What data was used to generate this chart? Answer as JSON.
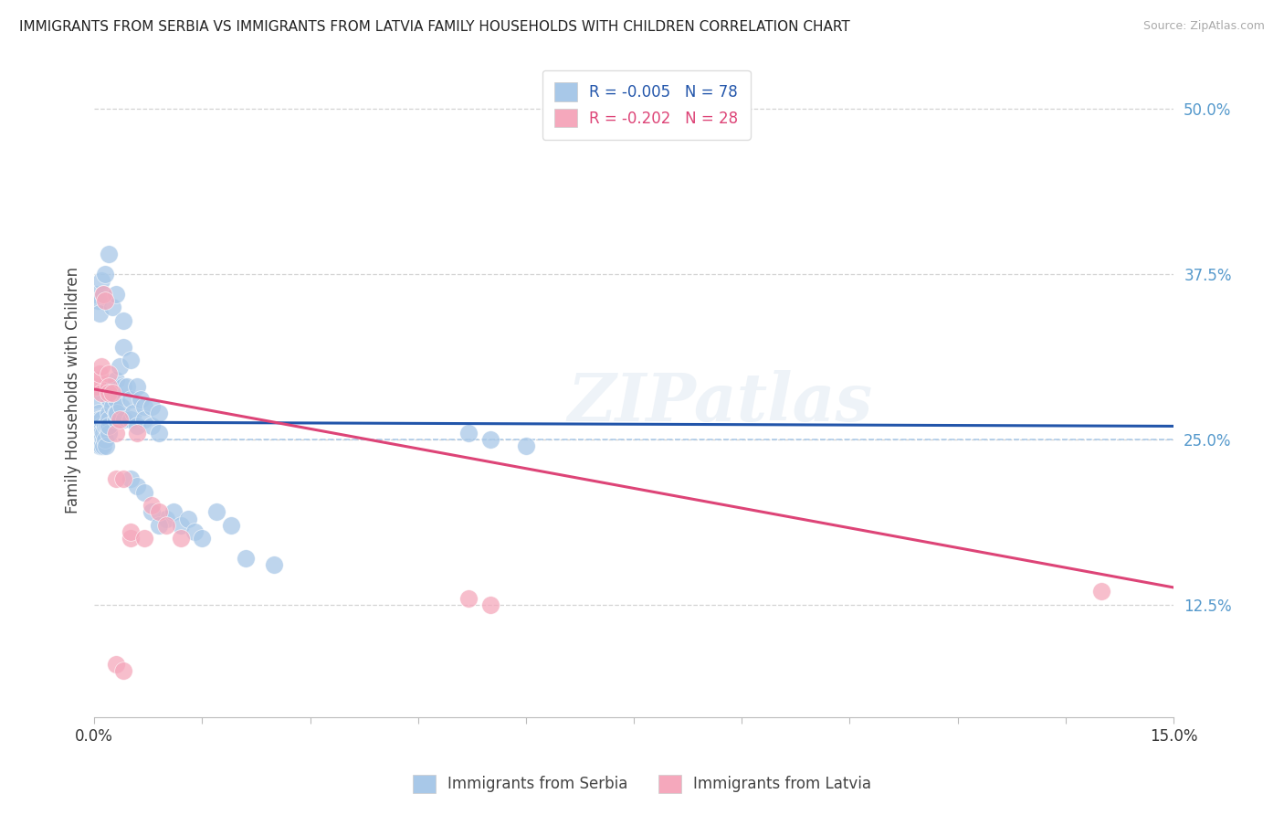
{
  "title": "IMMIGRANTS FROM SERBIA VS IMMIGRANTS FROM LATVIA FAMILY HOUSEHOLDS WITH CHILDREN CORRELATION CHART",
  "source": "Source: ZipAtlas.com",
  "ylabel": "Family Households with Children",
  "ytick_labels": [
    "12.5%",
    "25.0%",
    "37.5%",
    "50.0%"
  ],
  "ytick_values": [
    0.125,
    0.25,
    0.375,
    0.5
  ],
  "xmin": 0.0,
  "xmax": 0.15,
  "ymin": 0.04,
  "ymax": 0.535,
  "serbia_color": "#a8c8e8",
  "latvia_color": "#f5a8bc",
  "serbia_R": "-0.005",
  "serbia_N": "78",
  "latvia_R": "-0.202",
  "latvia_N": "28",
  "serbia_line_color": "#2255aa",
  "latvia_line_color": "#dd4477",
  "watermark": "ZIPatlas",
  "background_color": "#ffffff",
  "grid_color": "#cccccc",
  "serbia_points_x": [
    0.0003,
    0.0005,
    0.0006,
    0.0007,
    0.0008,
    0.001,
    0.001,
    0.001,
    0.001,
    0.001,
    0.0012,
    0.0012,
    0.0013,
    0.0015,
    0.0015,
    0.0016,
    0.0018,
    0.002,
    0.002,
    0.002,
    0.002,
    0.002,
    0.0022,
    0.0025,
    0.0025,
    0.0028,
    0.003,
    0.003,
    0.003,
    0.003,
    0.0032,
    0.0035,
    0.0038,
    0.004,
    0.004,
    0.0042,
    0.0045,
    0.005,
    0.005,
    0.005,
    0.0055,
    0.006,
    0.006,
    0.0065,
    0.007,
    0.007,
    0.008,
    0.008,
    0.009,
    0.009,
    0.01,
    0.011,
    0.012,
    0.013,
    0.014,
    0.015,
    0.017,
    0.019,
    0.021,
    0.025,
    0.0003,
    0.0005,
    0.0008,
    0.001,
    0.0013,
    0.0015,
    0.002,
    0.0025,
    0.003,
    0.004,
    0.005,
    0.006,
    0.007,
    0.008,
    0.009,
    0.052,
    0.055,
    0.06
  ],
  "serbia_points_y": [
    0.28,
    0.255,
    0.27,
    0.265,
    0.245,
    0.26,
    0.255,
    0.25,
    0.245,
    0.265,
    0.25,
    0.245,
    0.255,
    0.26,
    0.25,
    0.245,
    0.26,
    0.28,
    0.27,
    0.265,
    0.255,
    0.26,
    0.28,
    0.29,
    0.275,
    0.285,
    0.265,
    0.27,
    0.295,
    0.28,
    0.27,
    0.305,
    0.275,
    0.29,
    0.32,
    0.265,
    0.29,
    0.28,
    0.265,
    0.31,
    0.27,
    0.26,
    0.29,
    0.28,
    0.275,
    0.265,
    0.26,
    0.275,
    0.255,
    0.27,
    0.19,
    0.195,
    0.185,
    0.19,
    0.18,
    0.175,
    0.195,
    0.185,
    0.16,
    0.155,
    0.36,
    0.355,
    0.345,
    0.37,
    0.36,
    0.375,
    0.39,
    0.35,
    0.36,
    0.34,
    0.22,
    0.215,
    0.21,
    0.195,
    0.185,
    0.255,
    0.25,
    0.245
  ],
  "latvia_points_x": [
    0.0003,
    0.0005,
    0.0007,
    0.001,
    0.001,
    0.0012,
    0.0015,
    0.002,
    0.002,
    0.002,
    0.0025,
    0.003,
    0.003,
    0.0035,
    0.004,
    0.005,
    0.005,
    0.006,
    0.007,
    0.008,
    0.009,
    0.01,
    0.012,
    0.052,
    0.055,
    0.14,
    0.003,
    0.004
  ],
  "latvia_points_y": [
    0.29,
    0.295,
    0.3,
    0.305,
    0.285,
    0.36,
    0.355,
    0.3,
    0.29,
    0.285,
    0.285,
    0.22,
    0.255,
    0.265,
    0.22,
    0.175,
    0.18,
    0.255,
    0.175,
    0.2,
    0.195,
    0.185,
    0.175,
    0.13,
    0.125,
    0.135,
    0.08,
    0.075
  ]
}
